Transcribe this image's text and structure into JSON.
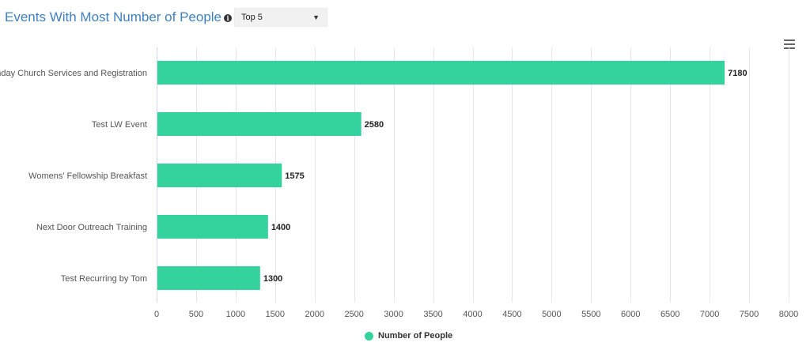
{
  "header": {
    "title": "Events With Most Number of People",
    "info_icon": "info-circle-icon",
    "select_value": "Top 5",
    "select_icon": "triangle-down-icon"
  },
  "menu_icon": "hamburger-menu-icon",
  "colors": {
    "bar": "#34d39e",
    "grid": "#e6e6e6",
    "title": "#3f7fbf"
  },
  "chart_data": {
    "type": "bar",
    "orientation": "horizontal",
    "title": "Events With Most Number of People",
    "categories": [
      "Sunday Church Services and Registration",
      "Test LW Event",
      "Womens' Fellowship Breakfast",
      "Next Door Outreach Training",
      "Test Recurring by Tom"
    ],
    "series": [
      {
        "name": "Number of People",
        "values": [
          7180,
          2580,
          1575,
          1400,
          1300
        ]
      }
    ],
    "xlim": [
      0,
      8000
    ],
    "xticks": [
      0,
      500,
      1000,
      1500,
      2000,
      2500,
      3000,
      3500,
      4000,
      4500,
      5000,
      5500,
      6000,
      6500,
      7000,
      7500,
      8000
    ],
    "grid": true,
    "data_labels": true,
    "legend_position": "bottom-center"
  }
}
